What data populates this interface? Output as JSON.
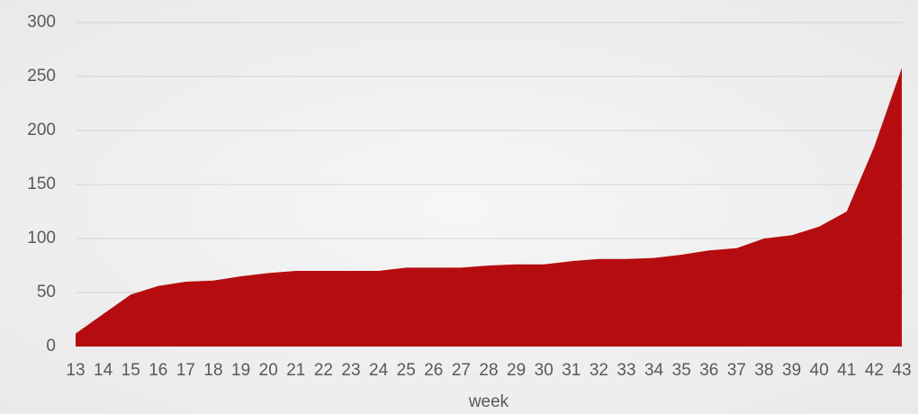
{
  "chart_data": {
    "type": "area",
    "x_label": "week",
    "categories": [
      "13",
      "14",
      "15",
      "16",
      "17",
      "18",
      "19",
      "20",
      "21",
      "22",
      "23",
      "24",
      "25",
      "26",
      "27",
      "28",
      "29",
      "30",
      "31",
      "32",
      "33",
      "34",
      "35",
      "36",
      "37",
      "38",
      "39",
      "40",
      "41",
      "42",
      "43"
    ],
    "values": [
      12,
      30,
      48,
      56,
      60,
      61,
      65,
      68,
      70,
      70,
      70,
      70,
      73,
      73,
      73,
      75,
      76,
      76,
      79,
      81,
      81,
      82,
      85,
      89,
      91,
      100,
      103,
      111,
      125,
      185,
      258
    ],
    "color": "#b50d0f",
    "ylim": [
      0,
      300
    ],
    "yticks": [
      0,
      50,
      100,
      150,
      200,
      250,
      300
    ],
    "grid": true
  }
}
